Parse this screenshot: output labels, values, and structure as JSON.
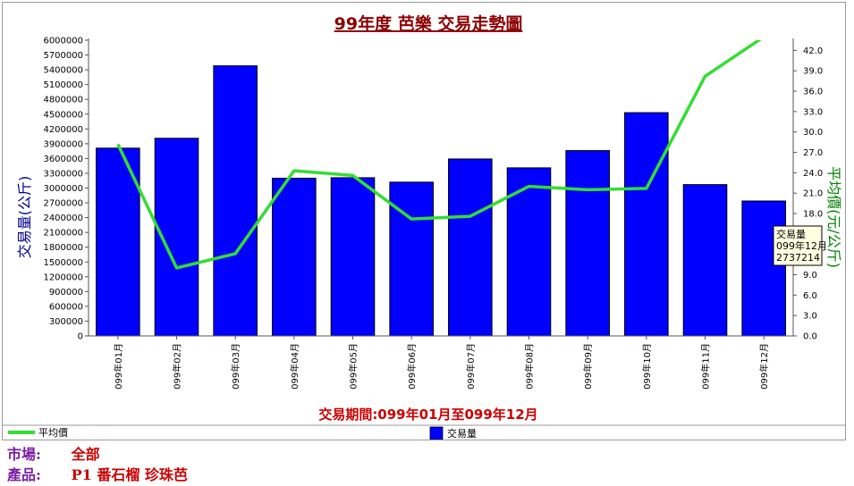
{
  "chart_data": {
    "type": "bar+line",
    "title": "99年度 芭樂 交易走勢圖",
    "categories": [
      "099年01月",
      "099年02月",
      "099年03月",
      "099年04月",
      "099年05月",
      "099年06月",
      "099年07月",
      "099年08月",
      "099年09月",
      "099年10月",
      "099年11月",
      "099年12月"
    ],
    "series": [
      {
        "name": "交易量",
        "kind": "bar",
        "axis": "left",
        "color": "#0000ff",
        "values": [
          3810000,
          4010000,
          5480000,
          3200000,
          3210000,
          3120000,
          3590000,
          3410000,
          3760000,
          4530000,
          3070000,
          2737214
        ]
      },
      {
        "name": "平均價",
        "kind": "line",
        "axis": "right",
        "color": "#33dd33",
        "values": [
          28.2,
          10.0,
          12.1,
          24.3,
          23.6,
          17.2,
          17.6,
          22.0,
          21.5,
          21.7,
          38.2,
          44.0
        ]
      }
    ],
    "ylabel_left": "交易量(公斤)",
    "ylabel_right": "平均價(元/公斤)",
    "ylim_left": [
      0,
      6000000
    ],
    "yticks_left": [
      0,
      300000,
      600000,
      900000,
      1200000,
      1500000,
      1800000,
      2100000,
      2400000,
      2700000,
      3000000,
      3300000,
      3600000,
      3900000,
      4200000,
      4500000,
      4800000,
      5100000,
      5400000,
      5700000,
      6000000
    ],
    "ylim_right": [
      0,
      43.5
    ],
    "yticks_right": [
      "0.0",
      "3.0",
      "6.0",
      "9.0",
      "12.0",
      "15.0",
      "18.0",
      "21.0",
      "24.0",
      "27.0",
      "30.0",
      "33.0",
      "36.0",
      "39.0",
      "42.0"
    ],
    "period_label": "交易期間:099年01月至099年12月",
    "legend_position": "bottom",
    "grid": false,
    "tooltip": {
      "lines": [
        "交易量",
        "099年12月",
        "2737214"
      ]
    }
  },
  "legend": {
    "line_label": "平均價",
    "bar_label": "交易量"
  },
  "info": {
    "market_label": "市場:",
    "market_value": "全部",
    "product_label": "產品:",
    "product_value": "P1 番石榴 珍珠芭"
  }
}
